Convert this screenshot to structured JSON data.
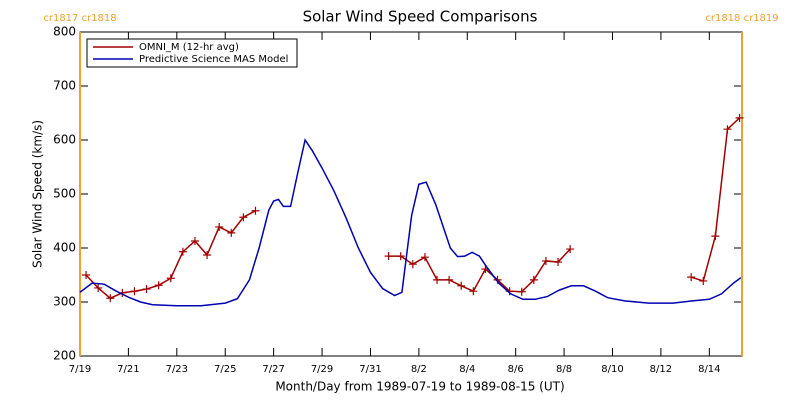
{
  "chart_data": {
    "type": "line",
    "title": "Solar Wind Speed Comparisons",
    "xlabel": "Month/Day from 1989-07-19 to 1989-08-15 (UT)",
    "ylabel": "Solar Wind Speed (km/s)",
    "xlim": [
      0,
      27.35
    ],
    "ylim": [
      200,
      800
    ],
    "xticks": [
      {
        "value": 0,
        "label": "7/19"
      },
      {
        "value": 2,
        "label": "7/21"
      },
      {
        "value": 4,
        "label": "7/23"
      },
      {
        "value": 6,
        "label": "7/25"
      },
      {
        "value": 8,
        "label": "7/27"
      },
      {
        "value": 10,
        "label": "7/29"
      },
      {
        "value": 12,
        "label": "7/31"
      },
      {
        "value": 14,
        "label": "8/2"
      },
      {
        "value": 16,
        "label": "8/4"
      },
      {
        "value": 18,
        "label": "8/6"
      },
      {
        "value": 20,
        "label": "8/8"
      },
      {
        "value": 22,
        "label": "8/10"
      },
      {
        "value": 24,
        "label": "8/12"
      },
      {
        "value": 26,
        "label": "8/14"
      }
    ],
    "yticks": [
      200,
      300,
      400,
      500,
      600,
      700,
      800
    ],
    "legend": "upper left",
    "boundaries": [
      {
        "x": 0,
        "label": "cr1817 cr1818"
      },
      {
        "x": 27.35,
        "label": "cr1818 cr1819"
      }
    ],
    "boundary_color": "#f0a030",
    "series": [
      {
        "name": "OMNI_M (12-hr avg)",
        "color": "#a00000",
        "marker": "+",
        "x": [
          0.25,
          0.75,
          1.25,
          1.75,
          2.25,
          2.75,
          3.25,
          3.75,
          4.25,
          4.75,
          5.25,
          5.75,
          6.25,
          6.75,
          7.25,
          7.75,
          12.75,
          13.25,
          13.75,
          14.25,
          14.75,
          15.25,
          15.75,
          16.25,
          16.75,
          17.25,
          17.75,
          18.25,
          18.75,
          19.25,
          19.75,
          20.25,
          20.75,
          25.25,
          25.75,
          26.25,
          26.75,
          27.25
        ],
        "values": [
          350,
          326,
          307,
          317,
          320,
          324,
          331,
          344,
          393,
          413,
          387,
          439,
          428,
          457,
          469,
          null,
          385,
          385,
          370,
          383,
          341,
          341,
          330,
          320,
          361,
          341,
          320,
          319,
          341,
          376,
          374,
          398,
          null,
          346,
          339,
          422,
          620,
          641
        ]
      },
      {
        "name": "Predictive Science MAS Model",
        "color": "#0000b0",
        "marker": "none",
        "x": [
          0,
          0.5,
          1,
          1.5,
          2,
          2.5,
          3,
          4,
          5,
          6,
          6.5,
          7,
          7.4,
          7.8,
          8.0,
          8.2,
          8.4,
          8.7,
          9.0,
          9.3,
          9.6,
          10.0,
          10.5,
          11.0,
          11.5,
          12.0,
          12.5,
          13.0,
          13.3,
          13.7,
          14.0,
          14.3,
          14.7,
          15.0,
          15.3,
          15.6,
          15.9,
          16.2,
          16.5,
          16.8,
          17.3,
          17.8,
          18.3,
          18.8,
          19.3,
          19.8,
          20.3,
          20.8,
          21.3,
          21.8,
          22.5,
          23.5,
          24.5,
          25.3,
          26.0,
          26.5,
          27.0,
          27.3
        ],
        "values": [
          318,
          335,
          333,
          320,
          309,
          300,
          295,
          293,
          293,
          298,
          306,
          341,
          400,
          470,
          487,
          490,
          477,
          477,
          540,
          600,
          580,
          548,
          505,
          455,
          400,
          355,
          325,
          312,
          318,
          460,
          518,
          522,
          480,
          440,
          400,
          384,
          385,
          392,
          385,
          365,
          335,
          315,
          305,
          305,
          310,
          322,
          330,
          330,
          320,
          308,
          302,
          298,
          298,
          302,
          305,
          315,
          335,
          345
        ]
      }
    ]
  }
}
